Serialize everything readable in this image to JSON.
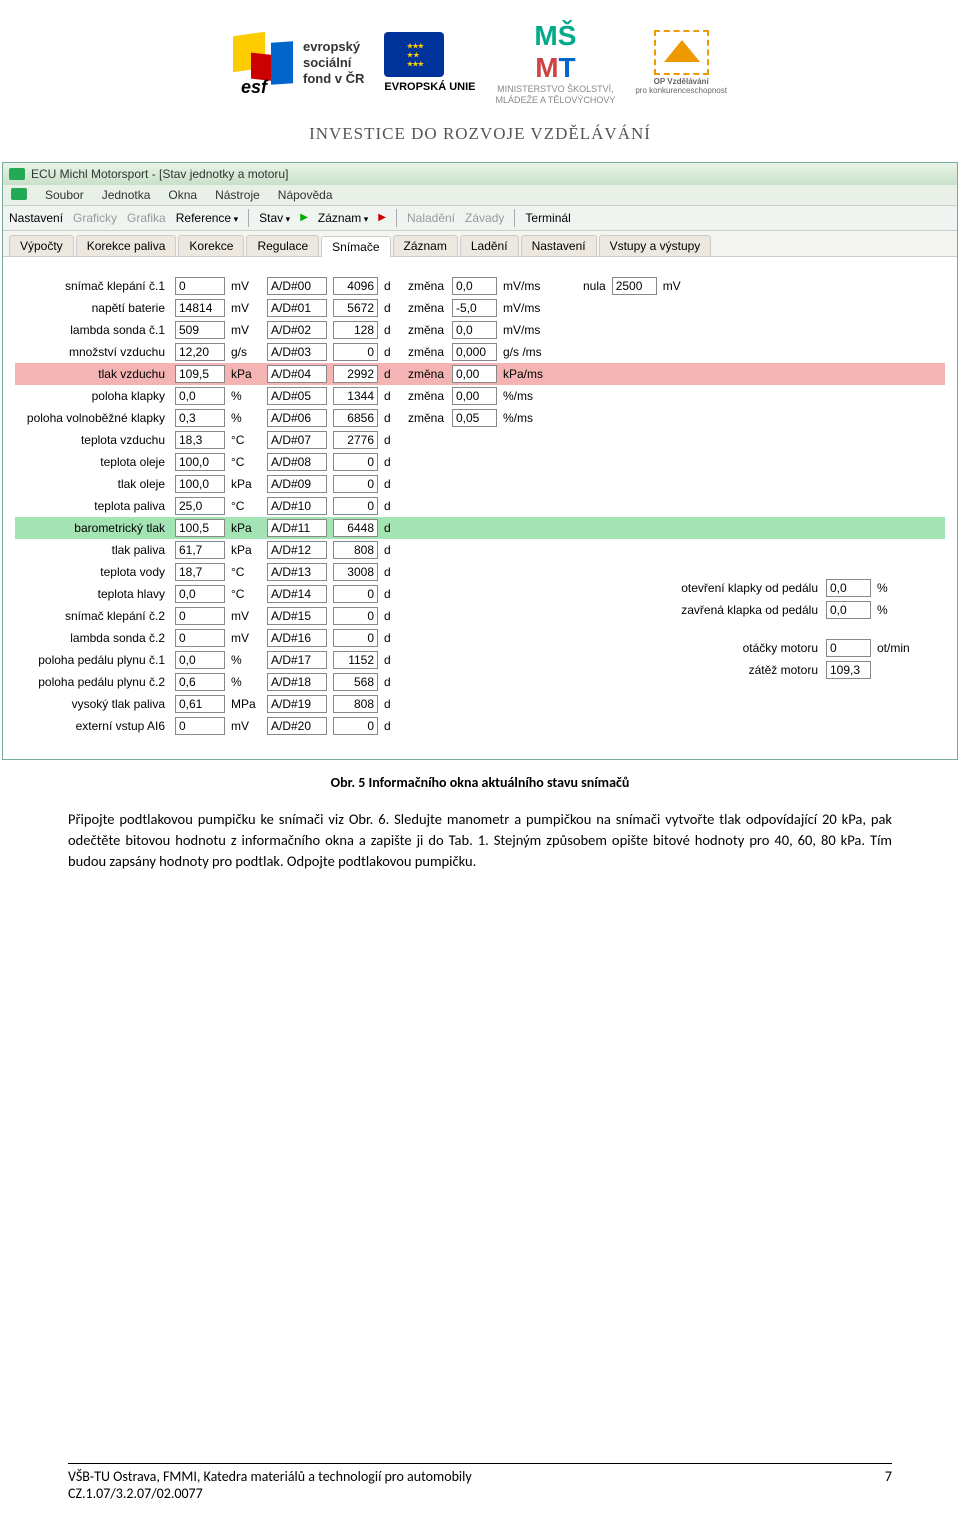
{
  "header": {
    "esf_text1": "evropský",
    "esf_text2": "sociální",
    "esf_text3": "fond v ČR",
    "eu_text": "EVROPSKÁ UNIE",
    "msmt_line1": "MINISTERSTVO ŠKOLSTVÍ,",
    "msmt_line2": "MLÁDEŽE A TĚLOVÝCHOVY",
    "op_line1": "OP Vzdělávání",
    "op_line2": "pro konkurenceschopnost",
    "tagline": "INVESTICE DO ROZVOJE VZDĚLÁVÁNÍ"
  },
  "app": {
    "title": "ECU Michl Motorsport - [Stav jednotky a motoru]",
    "menu": [
      "Soubor",
      "Jednotka",
      "Okna",
      "Nástroje",
      "Nápověda"
    ],
    "toolbar": {
      "nastaveni": "Nastavení",
      "graficky": "Graficky",
      "grafika": "Grafika",
      "reference": "Reference",
      "stav": "Stav",
      "zaznam": "Záznam",
      "naladeni": "Naladění",
      "zavady": "Závady",
      "terminal": "Terminál"
    },
    "tabs": [
      "Výpočty",
      "Korekce paliva",
      "Korekce",
      "Regulace",
      "Snímače",
      "Záznam",
      "Ladění",
      "Nastavení",
      "Vstupy a výstupy"
    ],
    "active_tab": 4,
    "nula_label": "nula",
    "nula_value": "2500",
    "nula_unit": "mV",
    "rows": [
      {
        "label": "snímač klepání č.1",
        "val": "0",
        "unit": "mV",
        "ad": "A/D#00",
        "dval": "4096",
        "d": "d",
        "zm": "změna",
        "zmval": "0,0",
        "zmunit": "mV/ms",
        "hl": ""
      },
      {
        "label": "napětí baterie",
        "val": "14814",
        "unit": "mV",
        "ad": "A/D#01",
        "dval": "5672",
        "d": "d",
        "zm": "změna",
        "zmval": "-5,0",
        "zmunit": "mV/ms",
        "hl": ""
      },
      {
        "label": "lambda sonda č.1",
        "val": "509",
        "unit": "mV",
        "ad": "A/D#02",
        "dval": "128",
        "d": "d",
        "zm": "změna",
        "zmval": "0,0",
        "zmunit": "mV/ms",
        "hl": ""
      },
      {
        "label": "množství vzduchu",
        "val": "12,20",
        "unit": "g/s",
        "ad": "A/D#03",
        "dval": "0",
        "d": "d",
        "zm": "změna",
        "zmval": "0,000",
        "zmunit": "g/s /ms",
        "hl": ""
      },
      {
        "label": "tlak vzduchu",
        "val": "109,5",
        "unit": "kPa",
        "ad": "A/D#04",
        "dval": "2992",
        "d": "d",
        "zm": "změna",
        "zmval": "0,00",
        "zmunit": "kPa/ms",
        "hl": "red"
      },
      {
        "label": "poloha klapky",
        "val": "0,0",
        "unit": "%",
        "ad": "A/D#05",
        "dval": "1344",
        "d": "d",
        "zm": "změna",
        "zmval": "0,00",
        "zmunit": "%/ms",
        "hl": ""
      },
      {
        "label": "poloha volnoběžné klapky",
        "val": "0,3",
        "unit": "%",
        "ad": "A/D#06",
        "dval": "6856",
        "d": "d",
        "zm": "změna",
        "zmval": "0,05",
        "zmunit": "%/ms",
        "hl": ""
      },
      {
        "label": "teplota vzduchu",
        "val": "18,3",
        "unit": "°C",
        "ad": "A/D#07",
        "dval": "2776",
        "d": "d",
        "zm": "",
        "zmval": "",
        "zmunit": "",
        "hl": ""
      },
      {
        "label": "teplota oleje",
        "val": "100,0",
        "unit": "°C",
        "ad": "A/D#08",
        "dval": "0",
        "d": "d",
        "zm": "",
        "zmval": "",
        "zmunit": "",
        "hl": ""
      },
      {
        "label": "tlak oleje",
        "val": "100,0",
        "unit": "kPa",
        "ad": "A/D#09",
        "dval": "0",
        "d": "d",
        "zm": "",
        "zmval": "",
        "zmunit": "",
        "hl": ""
      },
      {
        "label": "teplota paliva",
        "val": "25,0",
        "unit": "°C",
        "ad": "A/D#10",
        "dval": "0",
        "d": "d",
        "zm": "",
        "zmval": "",
        "zmunit": "",
        "hl": ""
      },
      {
        "label": "barometrický tlak",
        "val": "100,5",
        "unit": "kPa",
        "ad": "A/D#11",
        "dval": "6448",
        "d": "d",
        "zm": "",
        "zmval": "",
        "zmunit": "",
        "hl": "green"
      },
      {
        "label": "tlak paliva",
        "val": "61,7",
        "unit": "kPa",
        "ad": "A/D#12",
        "dval": "808",
        "d": "d",
        "zm": "",
        "zmval": "",
        "zmunit": "",
        "hl": ""
      },
      {
        "label": "teplota vody",
        "val": "18,7",
        "unit": "°C",
        "ad": "A/D#13",
        "dval": "3008",
        "d": "d",
        "zm": "",
        "zmval": "",
        "zmunit": "",
        "hl": ""
      },
      {
        "label": "teplota hlavy",
        "val": "0,0",
        "unit": "°C",
        "ad": "A/D#14",
        "dval": "0",
        "d": "d",
        "zm": "",
        "zmval": "",
        "zmunit": "",
        "hl": ""
      },
      {
        "label": "snímač klepání č.2",
        "val": "0",
        "unit": "mV",
        "ad": "A/D#15",
        "dval": "0",
        "d": "d",
        "zm": "",
        "zmval": "",
        "zmunit": "",
        "hl": ""
      },
      {
        "label": "lambda sonda č.2",
        "val": "0",
        "unit": "mV",
        "ad": "A/D#16",
        "dval": "0",
        "d": "d",
        "zm": "",
        "zmval": "",
        "zmunit": "",
        "hl": ""
      },
      {
        "label": "poloha pedálu plynu č.1",
        "val": "0,0",
        "unit": "%",
        "ad": "A/D#17",
        "dval": "1152",
        "d": "d",
        "zm": "",
        "zmval": "",
        "zmunit": "",
        "hl": ""
      },
      {
        "label": "poloha pedálu plynu č.2",
        "val": "0,6",
        "unit": "%",
        "ad": "A/D#18",
        "dval": "568",
        "d": "d",
        "zm": "",
        "zmval": "",
        "zmunit": "",
        "hl": ""
      },
      {
        "label": "vysoký tlak paliva",
        "val": "0,61",
        "unit": "MPa",
        "ad": "A/D#19",
        "dval": "808",
        "d": "d",
        "zm": "",
        "zmval": "",
        "zmunit": "",
        "hl": ""
      },
      {
        "label": "externí vstup AI6",
        "val": "0",
        "unit": "mV",
        "ad": "A/D#20",
        "dval": "0",
        "d": "d",
        "zm": "",
        "zmval": "",
        "zmunit": "",
        "hl": ""
      }
    ],
    "side_pedal": [
      {
        "label": "otevření klapky od pedálu",
        "val": "0,0",
        "unit": "%"
      },
      {
        "label": "zavřená klapka od pedálu",
        "val": "0,0",
        "unit": "%"
      }
    ],
    "side_motor": [
      {
        "label": "otáčky motoru",
        "val": "0",
        "unit": "ot/min"
      },
      {
        "label": "zátěž motoru",
        "val": "109,3",
        "unit": ""
      }
    ]
  },
  "caption": "Obr. 5 Informačního okna aktuálního stavu snímačů",
  "paragraph": "Připojte podtlakovou pumpičku ke snímači viz Obr. 6. Sledujte manometr a pumpičkou na snímači vytvořte tlak odpovídající 20 kPa, pak odečtěte bitovou hodnotu z informačního okna a zapište ji do Tab. 1. Stejným způsobem opište bitové hodnoty pro 40, 60, 80 kPa. Tím budou zapsány hodnoty pro podtlak. Odpojte podtlakovou pumpičku.",
  "footer": {
    "left1": "VŠB-TU Ostrava, FMMI, Katedra materiálů a technologií pro automobily",
    "left2": "CZ.1.07/3.2.07/02.0077",
    "page": "7"
  }
}
